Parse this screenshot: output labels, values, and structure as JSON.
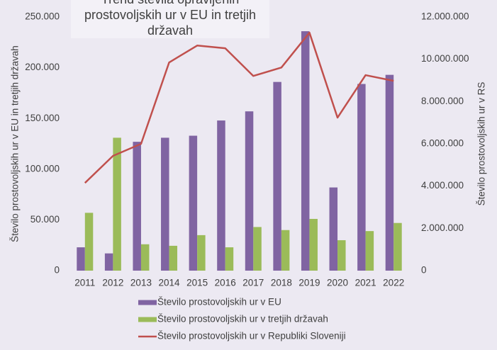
{
  "chart_data": {
    "type": "bar",
    "title": "Trend števila opravljenih prostovoljskih ur v EU in tretjih državah",
    "ylabel": "Število prostovoljskih ur v EU in tretjih državah",
    "y2label": "Število prostovoljskih ur v RS",
    "categories": [
      "2011",
      "2012",
      "2013",
      "2014",
      "2015",
      "2016",
      "2017",
      "2018",
      "2019",
      "2020",
      "2021",
      "2022"
    ],
    "series": [
      {
        "name": "Število prostovoljskih ur v EU",
        "color": "#8064a2",
        "type": "bar",
        "values": [
          23000,
          17000,
          127000,
          131000,
          133000,
          148000,
          157000,
          186000,
          236000,
          82000,
          184000,
          193000
        ]
      },
      {
        "name": "Število prostovoljskih ur v tretjih državah",
        "color": "#9bbb59",
        "type": "bar",
        "values": [
          57000,
          131000,
          26000,
          24500,
          35000,
          23000,
          43000,
          40000,
          51000,
          30000,
          39000,
          47000
        ]
      },
      {
        "name": "Število prostovoljskih ur v Republiki Sloveniji",
        "color": "#c0504d",
        "type": "line",
        "axis": "y2",
        "values": [
          4150000,
          5430000,
          6000000,
          9850000,
          10650000,
          10520000,
          9210000,
          9610000,
          11260000,
          7240000,
          9250000,
          8980000
        ]
      }
    ],
    "ylim": [
      0,
      250000
    ],
    "yticks": [
      0,
      {
        "value": 50000,
        "label": "50.000"
      },
      {
        "value": 100000,
        "label": "100.000"
      },
      {
        "value": 150000,
        "label": "150.000"
      },
      {
        "value": 200000,
        "label": "200.000"
      },
      {
        "value": 250000,
        "label": "250.000"
      }
    ],
    "y2lim": [
      0,
      12000000
    ],
    "y2ticks": [
      0,
      {
        "value": 2000000,
        "label": "2.000.000"
      },
      {
        "value": 4000000,
        "label": "4.000.000"
      },
      {
        "value": 6000000,
        "label": "6.000.000"
      },
      {
        "value": 8000000,
        "label": "8.000.000"
      },
      {
        "value": 10000000,
        "label": "10.000.000"
      },
      {
        "value": 12000000,
        "label": "12.000.000"
      }
    ],
    "legend": "bottom"
  }
}
